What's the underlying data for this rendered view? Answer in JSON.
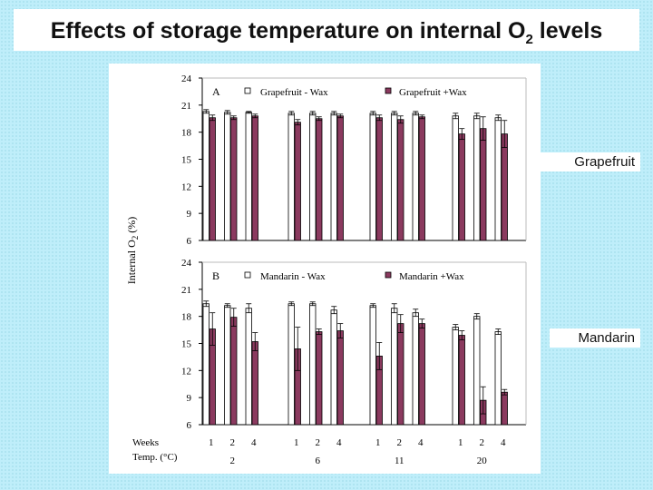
{
  "title": "Effects of storage temperature on internal O2 levels",
  "title_main": "Effects of storage temperature on internal O",
  "title_sub": "2",
  "title_tail": " levels",
  "side_labels": {
    "grapefruit": "Grapefruit",
    "mandarin": "Mandarin"
  },
  "chart_data": [
    {
      "type": "bar",
      "panel": "A",
      "ylabel": "Internal O2 (%)",
      "ylim": [
        6,
        24
      ],
      "yticks": [
        24,
        21,
        18,
        15,
        12,
        9,
        6
      ],
      "legend_placement": "top",
      "series": [
        {
          "name": "Grapefruit - Wax",
          "color": "#ffffff",
          "values": [
            20.3,
            20.2,
            20.2,
            20.1,
            20.1,
            20.1,
            20.1,
            20.1,
            20.1,
            19.8,
            19.8,
            19.6
          ],
          "errors": [
            0.2,
            0.2,
            0.1,
            0.2,
            0.2,
            0.2,
            0.2,
            0.2,
            0.2,
            0.3,
            0.3,
            0.3
          ]
        },
        {
          "name": "Grapefruit +Wax",
          "color": "#8b3a5f",
          "values": [
            19.6,
            19.6,
            19.8,
            19.1,
            19.5,
            19.8,
            19.6,
            19.4,
            19.7,
            17.8,
            18.4,
            17.8
          ],
          "errors": [
            0.3,
            0.2,
            0.2,
            0.3,
            0.2,
            0.2,
            0.3,
            0.4,
            0.2,
            0.6,
            1.3,
            1.5
          ]
        }
      ]
    },
    {
      "type": "bar",
      "panel": "B",
      "ylabel": "Internal O2 (%)",
      "ylim": [
        6,
        24
      ],
      "yticks": [
        24,
        21,
        18,
        15,
        12,
        9,
        6
      ],
      "legend_placement": "top",
      "series": [
        {
          "name": "Mandarin - Wax",
          "color": "#ffffff",
          "values": [
            19.4,
            19.2,
            18.9,
            19.4,
            19.4,
            18.7,
            19.2,
            18.9,
            18.4,
            16.8,
            18.0,
            16.3
          ],
          "errors": [
            0.3,
            0.2,
            0.5,
            0.2,
            0.2,
            0.4,
            0.2,
            0.5,
            0.4,
            0.3,
            0.3,
            0.3
          ]
        },
        {
          "name": "Mandarin +Wax",
          "color": "#8b3a5f",
          "values": [
            16.6,
            17.9,
            15.2,
            14.4,
            16.3,
            16.4,
            13.6,
            17.2,
            17.2,
            15.9,
            8.7,
            9.6
          ],
          "errors": [
            1.8,
            1.0,
            1.0,
            2.4,
            0.3,
            0.8,
            1.5,
            1.0,
            0.5,
            0.5,
            1.5,
            0.3
          ]
        }
      ]
    }
  ],
  "x_axis": {
    "weeks_label": "Weeks",
    "temp_label": "Temp. (°C)",
    "weeks": [
      "1",
      "2",
      "4",
      "1",
      "2",
      "4",
      "1",
      "2",
      "4",
      "1",
      "2",
      "4"
    ],
    "temps": [
      "2",
      "6",
      "11",
      "20"
    ]
  }
}
